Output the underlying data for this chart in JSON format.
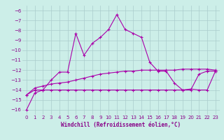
{
  "xlabel": "Windchill (Refroidissement éolien,°C)",
  "x": [
    0,
    1,
    2,
    3,
    4,
    5,
    6,
    7,
    8,
    9,
    10,
    11,
    12,
    13,
    14,
    15,
    16,
    17,
    18,
    19,
    20,
    21,
    22,
    23
  ],
  "line1": [
    -16.0,
    -14.3,
    -14.0,
    -13.0,
    -12.2,
    -12.2,
    -8.3,
    -10.5,
    -9.3,
    -8.7,
    -7.9,
    -6.4,
    -7.9,
    -8.3,
    -8.7,
    -11.2,
    -12.1,
    -12.1,
    -13.3,
    -14.0,
    -14.0,
    -12.4,
    -12.1,
    -12.1
  ],
  "line2": [
    -14.5,
    -13.8,
    -13.6,
    -13.4,
    -13.3,
    -13.2,
    -13.0,
    -12.8,
    -12.6,
    -12.4,
    -12.3,
    -12.2,
    -12.1,
    -12.1,
    -12.0,
    -12.0,
    -12.0,
    -12.0,
    -12.0,
    -11.9,
    -11.9,
    -11.9,
    -11.9,
    -12.0
  ],
  "line3": [
    -14.5,
    -14.0,
    -14.0,
    -14.0,
    -14.0,
    -14.0,
    -14.0,
    -14.0,
    -14.0,
    -14.0,
    -14.0,
    -14.0,
    -14.0,
    -14.0,
    -14.0,
    -14.0,
    -14.0,
    -14.0,
    -14.0,
    -14.0,
    -13.9,
    -14.0,
    -14.0,
    -12.1
  ],
  "ylim": [
    -16.5,
    -5.5
  ],
  "yticks": [
    -16,
    -15,
    -14,
    -13,
    -12,
    -11,
    -10,
    -9,
    -8,
    -7,
    -6
  ],
  "xticks": [
    0,
    1,
    2,
    3,
    4,
    5,
    6,
    7,
    8,
    9,
    10,
    11,
    12,
    13,
    14,
    15,
    16,
    17,
    18,
    19,
    20,
    21,
    22,
    23
  ],
  "line_color": "#aa00aa",
  "bg_color": "#cceee8",
  "grid_color": "#aacccc",
  "tick_color": "#880088",
  "label_color": "#880088",
  "figwidth": 3.2,
  "figheight": 2.0,
  "dpi": 100
}
